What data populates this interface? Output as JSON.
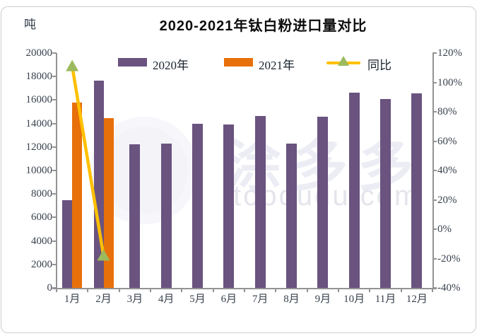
{
  "card": {
    "title": "2020-2021年钛白粉进口量对比",
    "unit_label": "吨"
  },
  "legend": [
    {
      "label": "2020年",
      "color": "#6a537f",
      "type": "bar"
    },
    {
      "label": "2021年",
      "color": "#e8700a",
      "type": "bar"
    },
    {
      "label": "同比",
      "color": "#ffc000",
      "marker_color": "#9cba5d",
      "type": "line"
    }
  ],
  "watermark": {
    "cn": "涂多多",
    "en": "toodudu.com"
  },
  "chart_data": {
    "type": "bar",
    "title": "2020-2021年钛白粉进口量对比",
    "categories": [
      "1月",
      "2月",
      "3月",
      "4月",
      "5月",
      "6月",
      "7月",
      "8月",
      "9月",
      "10月",
      "11月",
      "12月"
    ],
    "series": [
      {
        "name": "2020年",
        "type": "bar",
        "axis": "left",
        "color": "#6a537f",
        "values": [
          7500,
          17650,
          12250,
          12300,
          13950,
          13900,
          14650,
          12300,
          14550,
          16650,
          16100,
          16550
        ]
      },
      {
        "name": "2021年",
        "type": "bar",
        "axis": "left",
        "color": "#e8700a",
        "values": [
          15800,
          14450,
          null,
          null,
          null,
          null,
          null,
          null,
          null,
          null,
          null,
          null
        ]
      },
      {
        "name": "同比",
        "type": "line",
        "axis": "right",
        "color": "#ffc000",
        "marker": "triangle-up",
        "marker_color": "#9cba5d",
        "values": [
          111,
          -18,
          null,
          null,
          null,
          null,
          null,
          null,
          null,
          null,
          null,
          null
        ]
      }
    ],
    "left_axis": {
      "title": "吨",
      "min": 0,
      "max": 20000,
      "step": 2000
    },
    "right_axis": {
      "min": -40,
      "max": 120,
      "step": 20,
      "format": "percent"
    },
    "grid": false,
    "legend_position": "top"
  }
}
